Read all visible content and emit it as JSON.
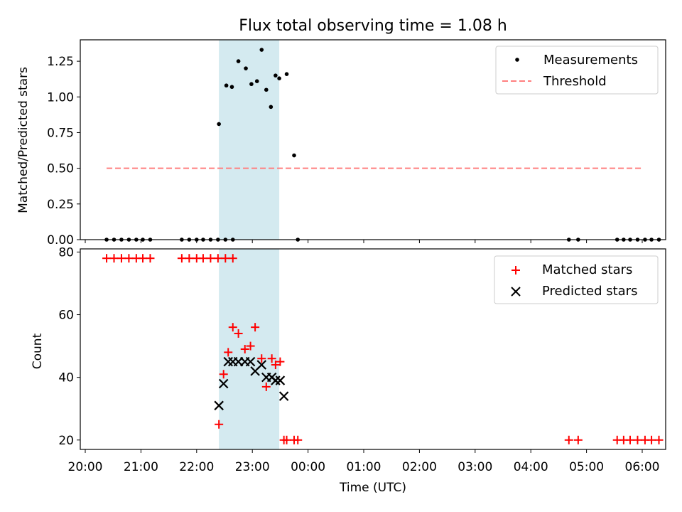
{
  "chart_data": [
    {
      "type": "scatter",
      "title": "Flux total observing time = 1.08 h",
      "xlabel": "",
      "ylabel": "Matched/Predicted stars",
      "ylim": [
        0,
        1.4
      ],
      "yticks": [
        "0.00",
        "0.25",
        "0.50",
        "0.75",
        "1.00",
        "1.25"
      ],
      "grid": false,
      "legend_position": "top-right",
      "highlight_span": {
        "from": "22:24",
        "to": "23:29",
        "color": "#d4eaf0"
      },
      "series": [
        {
          "name": "Measurements",
          "marker": "dot",
          "color": "#000000",
          "x": [
            "20:23",
            "20:31",
            "20:39",
            "20:47",
            "20:55",
            "21:02",
            "21:10",
            "21:44",
            "21:52",
            "22:00",
            "22:07",
            "22:15",
            "22:23",
            "22:31",
            "22:39",
            "22:24",
            "22:32",
            "22:38",
            "22:45",
            "22:53",
            "22:59",
            "23:05",
            "23:10",
            "23:15",
            "23:20",
            "23:25",
            "23:29",
            "23:37",
            "23:45",
            "23:49",
            "04:41",
            "04:51",
            "05:33",
            "05:40",
            "05:47",
            "05:55",
            "06:03",
            "06:10",
            "06:18"
          ],
          "y": [
            0,
            0,
            0,
            0,
            0,
            0,
            0,
            0,
            0,
            0,
            0,
            0,
            0,
            0,
            0,
            0.81,
            1.08,
            1.07,
            1.25,
            1.2,
            1.09,
            1.11,
            1.33,
            1.05,
            0.93,
            1.15,
            1.13,
            1.16,
            0.59,
            0,
            0,
            0,
            0,
            0,
            0,
            0,
            0,
            0,
            0
          ]
        },
        {
          "name": "Threshold",
          "style": "dashed",
          "color": "#ff7f7f",
          "x": [
            "20:23",
            "06:00"
          ],
          "y": [
            0.5,
            0.5
          ]
        }
      ]
    },
    {
      "type": "scatter",
      "xlabel": "Time (UTC)",
      "ylabel": "Count",
      "ylim": [
        17,
        81
      ],
      "yticks": [
        "20",
        "40",
        "60",
        "80"
      ],
      "xticks": [
        "20:00",
        "21:00",
        "22:00",
        "23:00",
        "00:00",
        "01:00",
        "02:00",
        "03:00",
        "04:00",
        "05:00",
        "06:00"
      ],
      "grid": false,
      "legend_position": "top-right",
      "highlight_span": {
        "from": "22:24",
        "to": "23:29",
        "color": "#d4eaf0"
      },
      "series": [
        {
          "name": "Matched stars",
          "marker": "plus",
          "color": "#ff0000",
          "x": [
            "20:23",
            "20:31",
            "20:39",
            "20:47",
            "20:55",
            "21:02",
            "21:10",
            "21:44",
            "21:52",
            "22:00",
            "22:07",
            "22:15",
            "22:23",
            "22:31",
            "22:39",
            "22:24",
            "22:29",
            "22:34",
            "22:39",
            "22:45",
            "22:52",
            "22:58",
            "23:03",
            "23:10",
            "23:15",
            "23:21",
            "23:25",
            "23:30",
            "23:34",
            "23:37",
            "23:45",
            "23:49",
            "04:41",
            "04:51",
            "05:33",
            "05:40",
            "05:47",
            "05:55",
            "06:03",
            "06:10",
            "06:18"
          ],
          "y": [
            78,
            78,
            78,
            78,
            78,
            78,
            78,
            78,
            78,
            78,
            78,
            78,
            78,
            78,
            78,
            25,
            41,
            48,
            56,
            54,
            49,
            50,
            56,
            46,
            37,
            46,
            44,
            45,
            20,
            20,
            20,
            20,
            20,
            20,
            20,
            20,
            20,
            20,
            20,
            20,
            20
          ]
        },
        {
          "name": "Predicted stars",
          "marker": "x",
          "color": "#000000",
          "x": [
            "22:24",
            "22:29",
            "22:34",
            "22:39",
            "22:45",
            "22:52",
            "22:58",
            "23:03",
            "23:10",
            "23:15",
            "23:21",
            "23:25",
            "23:30",
            "23:34"
          ],
          "y": [
            31,
            38,
            45,
            45,
            45,
            45,
            45,
            42,
            44,
            40,
            40,
            39,
            39,
            34
          ]
        }
      ]
    }
  ]
}
